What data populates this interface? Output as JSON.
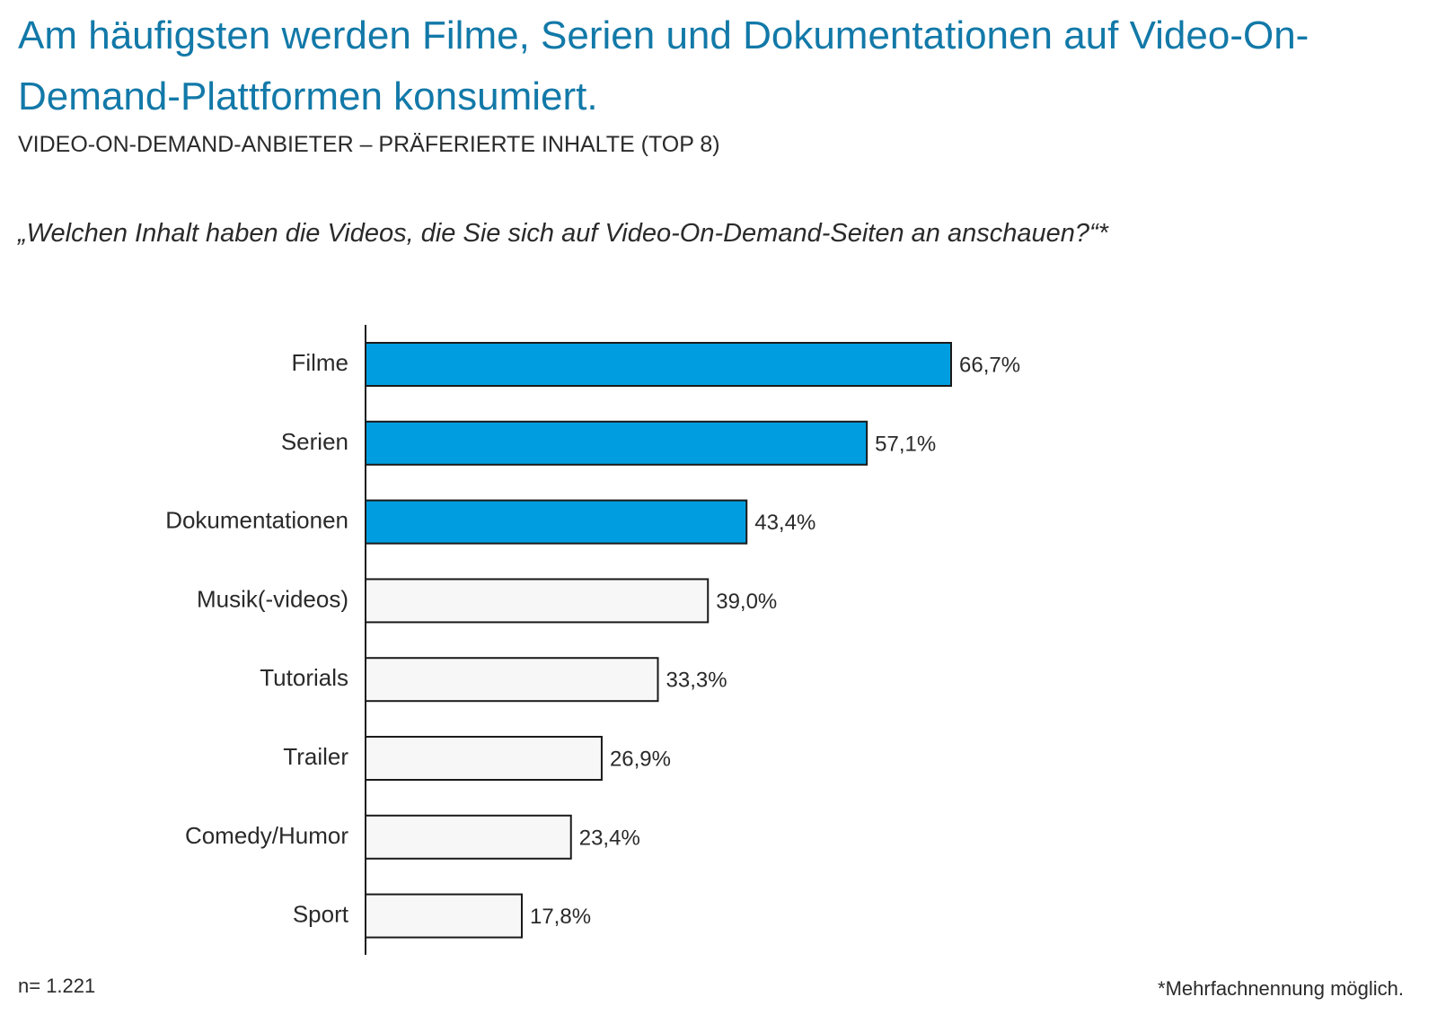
{
  "header": {
    "title": "Am häufigsten werden Filme, Serien und Dokumentationen auf Video-On-Demand-Plattformen konsumiert.",
    "subtitle": "VIDEO-ON-DEMAND-ANBIETER – PRÄFERIERTE INHALTE (TOP 8)",
    "question": "„Welchen Inhalt haben die Videos, die Sie sich auf Video-On-Demand-Seiten an anschauen?“*"
  },
  "footer": {
    "sample_size": "n= 1.221",
    "note": "*Mehrfachnennung möglich."
  },
  "colors": {
    "title": "#1279a8",
    "highlight_bar": "#009ee0",
    "plain_bar": "#f7f7f7",
    "bar_border": "#1a1a1a",
    "text": "#2a2a2a"
  },
  "chart_data": {
    "type": "bar",
    "orientation": "horizontal",
    "categories": [
      "Filme",
      "Serien",
      "Dokumentationen",
      "Musik(-videos)",
      "Tutorials",
      "Trailer",
      "Comedy/Humor",
      "Sport"
    ],
    "values": [
      66.7,
      57.1,
      43.4,
      39.0,
      33.3,
      26.9,
      23.4,
      17.8
    ],
    "value_labels": [
      "66,7%",
      "57,1%",
      "43,4%",
      "39,0%",
      "33,3%",
      "26,9%",
      "23,4%",
      "17,8%"
    ],
    "highlighted": [
      true,
      true,
      true,
      false,
      false,
      false,
      false,
      false
    ],
    "unit": "%",
    "xlim": [
      0,
      100
    ],
    "grid": false,
    "legend": "none"
  }
}
